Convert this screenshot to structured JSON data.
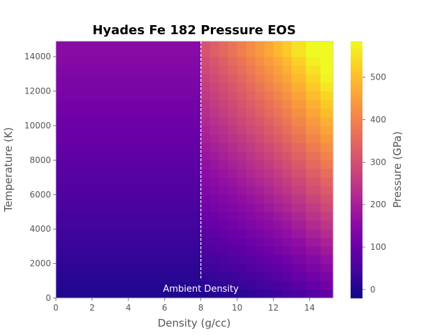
{
  "chart_data": {
    "type": "heatmap",
    "title": "Hyades Fe 182 Pressure EOS",
    "xlabel": "Density (g/cc)",
    "ylabel": "Temperature (K)",
    "colorbar_label": "Pressure (GPa)",
    "colormap": "plasma",
    "xlim": [
      0,
      15.3
    ],
    "ylim": [
      0,
      14900
    ],
    "clim": [
      -20,
      585
    ],
    "xticks": [
      0,
      2,
      4,
      6,
      8,
      10,
      12,
      14
    ],
    "xtick_labels": [
      "0",
      "2",
      "4",
      "6",
      "8",
      "10",
      "12",
      "14"
    ],
    "yticks": [
      0,
      2000,
      4000,
      6000,
      8000,
      10000,
      12000,
      14000
    ],
    "ytick_labels": [
      "0",
      "2000",
      "4000",
      "6000",
      "8000",
      "10000",
      "12000",
      "14000"
    ],
    "cticks": [
      0,
      100,
      200,
      300,
      400,
      500
    ],
    "ctick_labels": [
      "0",
      "100",
      "200",
      "300",
      "400",
      "500"
    ],
    "density_edges": [
      0,
      8.0,
      8.5,
      9.0,
      9.5,
      10.0,
      10.5,
      11.0,
      11.5,
      12.0,
      12.5,
      13.0,
      13.8,
      14.6,
      15.3
    ],
    "temperature_edges": [
      0,
      500,
      1000,
      1500,
      2000,
      2500,
      3000,
      3500,
      4000,
      4500,
      5000,
      5500,
      6000,
      6500,
      7000,
      7500,
      8000,
      8500,
      9000,
      9500,
      10000,
      10500,
      11000,
      11500,
      12000,
      12500,
      13000,
      13500,
      14000,
      14900
    ],
    "pressure_model": "P(rho,T) = 1.6*(rho-7.85)^2 for rho>7.85 + 0.0026*rho*T (GPa), evaluated at cell centers",
    "vertical_line": {
      "x": 8,
      "label": "Ambient Density",
      "style": "dashed",
      "color": "#ffffff"
    }
  }
}
